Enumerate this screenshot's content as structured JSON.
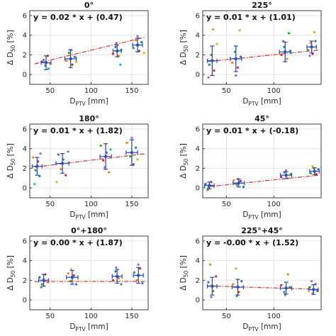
{
  "chart_data": [
    {
      "type": "scatter",
      "title": "0°",
      "equation": "y = 0.02 * x + (0.47)",
      "xlabel": {
        "main": "D",
        "sub": "PTV",
        "unit": " [mm]"
      },
      "ylabel": {
        "main": "Δ D",
        "sub": "50",
        "unit": " [%]"
      },
      "xlim": [
        25,
        170
      ],
      "ylim": [
        -1,
        6.5
      ],
      "xticks": [
        50,
        100,
        150
      ],
      "yticks": [
        0,
        2,
        4,
        6
      ],
      "grid": true,
      "fit": {
        "slope": 0.02,
        "intercept": 0.47
      },
      "means": [
        {
          "x": 45,
          "y": 1.2,
          "xerr": 6,
          "yerr": 0.7
        },
        {
          "x": 75,
          "y": 1.6,
          "xerr": 7,
          "yerr": 0.9
        },
        {
          "x": 132,
          "y": 2.4,
          "xerr": 5,
          "yerr": 0.6
        },
        {
          "x": 157,
          "y": 3.0,
          "xerr": 6,
          "yerr": 0.7
        }
      ],
      "points": [
        {
          "x": 40,
          "y": 1.3,
          "c": "#1f77b4"
        },
        {
          "x": 44,
          "y": 0.9,
          "c": "#2ca02c"
        },
        {
          "x": 47,
          "y": 1.9,
          "c": "#d62728"
        },
        {
          "x": 50,
          "y": 1.1,
          "c": "#ff7f0e"
        },
        {
          "x": 42,
          "y": 1.5,
          "c": "#9467bd"
        },
        {
          "x": 48,
          "y": 0.6,
          "c": "#17becf"
        },
        {
          "x": 70,
          "y": 1.4,
          "c": "#ff7f0e"
        },
        {
          "x": 73,
          "y": 2.2,
          "c": "#2ca02c"
        },
        {
          "x": 77,
          "y": 1.0,
          "c": "#d62728"
        },
        {
          "x": 80,
          "y": 1.8,
          "c": "#1f77b4"
        },
        {
          "x": 75,
          "y": 2.5,
          "c": "#9467bd"
        },
        {
          "x": 82,
          "y": 1.3,
          "c": "#bcbd22"
        },
        {
          "x": 127,
          "y": 2.1,
          "c": "#d62728"
        },
        {
          "x": 130,
          "y": 2.8,
          "c": "#1f77b4"
        },
        {
          "x": 134,
          "y": 1.9,
          "c": "#ff7f0e"
        },
        {
          "x": 137,
          "y": 2.5,
          "c": "#2ca02c"
        },
        {
          "x": 131,
          "y": 3.2,
          "c": "#9467bd"
        },
        {
          "x": 136,
          "y": 1.0,
          "c": "#17becf"
        },
        {
          "x": 152,
          "y": 2.7,
          "c": "#2ca02c"
        },
        {
          "x": 155,
          "y": 3.5,
          "c": "#ff7f0e"
        },
        {
          "x": 159,
          "y": 2.4,
          "c": "#d62728"
        },
        {
          "x": 162,
          "y": 3.3,
          "c": "#1f77b4"
        },
        {
          "x": 157,
          "y": 3.9,
          "c": "#9467bd"
        },
        {
          "x": 165,
          "y": 2.2,
          "c": "#bcbd22"
        }
      ]
    },
    {
      "type": "scatter",
      "title": "225°",
      "equation": "y = 0.01 * x + (1.01)",
      "xlabel": {
        "main": "D",
        "sub": "PTV",
        "unit": " [mm]"
      },
      "ylabel": {
        "main": "Δ D",
        "sub": "50",
        "unit": " [%]"
      },
      "xlim": [
        25,
        150
      ],
      "ylim": [
        -1,
        6.5
      ],
      "xticks": [
        50,
        100
      ],
      "yticks": [
        0,
        2,
        4,
        6
      ],
      "grid": true,
      "fit": {
        "slope": 0.01,
        "intercept": 1.01
      },
      "means": [
        {
          "x": 35,
          "y": 1.4,
          "xerr": 5,
          "yerr": 1.5
        },
        {
          "x": 60,
          "y": 1.6,
          "xerr": 6,
          "yerr": 1.3
        },
        {
          "x": 112,
          "y": 2.3,
          "xerr": 6,
          "yerr": 1.0
        },
        {
          "x": 140,
          "y": 2.8,
          "xerr": 5,
          "yerr": 0.6
        }
      ],
      "points": [
        {
          "x": 32,
          "y": 1.0,
          "c": "#1f77b4"
        },
        {
          "x": 34,
          "y": 2.0,
          "c": "#2ca02c"
        },
        {
          "x": 37,
          "y": 0.4,
          "c": "#d62728"
        },
        {
          "x": 36,
          "y": 4.6,
          "c": "#ff7f0e"
        },
        {
          "x": 40,
          "y": 3.1,
          "c": "#bcbd22"
        },
        {
          "x": 31,
          "y": -0.3,
          "c": "#9467bd"
        },
        {
          "x": 56,
          "y": 1.2,
          "c": "#ff7f0e"
        },
        {
          "x": 59,
          "y": 2.3,
          "c": "#2ca02c"
        },
        {
          "x": 62,
          "y": 0.7,
          "c": "#d62728"
        },
        {
          "x": 64,
          "y": 4.5,
          "c": "#bcbd22"
        },
        {
          "x": 60,
          "y": -0.1,
          "c": "#9467bd"
        },
        {
          "x": 65,
          "y": 1.8,
          "c": "#1f77b4"
        },
        {
          "x": 108,
          "y": 2.0,
          "c": "#d62728"
        },
        {
          "x": 111,
          "y": 2.8,
          "c": "#1f77b4"
        },
        {
          "x": 114,
          "y": 1.6,
          "c": "#ff7f0e"
        },
        {
          "x": 116,
          "y": 4.2,
          "c": "#2ca02c"
        },
        {
          "x": 110,
          "y": 3.4,
          "c": "#9467bd"
        },
        {
          "x": 117,
          "y": 2.4,
          "c": "#17becf"
        },
        {
          "x": 136,
          "y": 2.5,
          "c": "#2ca02c"
        },
        {
          "x": 139,
          "y": 3.2,
          "c": "#ff7f0e"
        },
        {
          "x": 141,
          "y": 2.1,
          "c": "#d62728"
        },
        {
          "x": 143,
          "y": 4.3,
          "c": "#bcbd22"
        },
        {
          "x": 138,
          "y": 1.9,
          "c": "#9467bd"
        },
        {
          "x": 144,
          "y": 3.4,
          "c": "#1f77b4"
        }
      ]
    },
    {
      "type": "scatter",
      "title": "180°",
      "equation": "y = 0.01 * x + (1.82)",
      "xlabel": {
        "main": "D",
        "sub": "PTV",
        "unit": " [mm]"
      },
      "ylabel": {
        "main": "Δ D",
        "sub": "50",
        "unit": " [%]"
      },
      "xlim": [
        25,
        170
      ],
      "ylim": [
        -1,
        6.5
      ],
      "xticks": [
        50,
        100,
        150
      ],
      "yticks": [
        0,
        2,
        4,
        6
      ],
      "grid": true,
      "fit": {
        "slope": 0.01,
        "intercept": 1.82
      },
      "means": [
        {
          "x": 34,
          "y": 2.2,
          "xerr": 6,
          "yerr": 0.9
        },
        {
          "x": 65,
          "y": 2.5,
          "xerr": 8,
          "yerr": 1.0
        },
        {
          "x": 118,
          "y": 3.2,
          "xerr": 7,
          "yerr": 1.3
        },
        {
          "x": 150,
          "y": 3.6,
          "xerr": 7,
          "yerr": 1.3
        }
      ],
      "points": [
        {
          "x": 29,
          "y": 3.1,
          "c": "#ff7f0e"
        },
        {
          "x": 32,
          "y": 1.8,
          "c": "#2ca02c"
        },
        {
          "x": 35,
          "y": 2.7,
          "c": "#d62728"
        },
        {
          "x": 37,
          "y": 1.2,
          "c": "#1f77b4"
        },
        {
          "x": 31,
          "y": 0.4,
          "c": "#17becf"
        },
        {
          "x": 38,
          "y": 3.5,
          "c": "#9467bd"
        },
        {
          "x": 60,
          "y": 3.4,
          "c": "#1f77b4"
        },
        {
          "x": 63,
          "y": 1.9,
          "c": "#ff7f0e"
        },
        {
          "x": 66,
          "y": 2.9,
          "c": "#2ca02c"
        },
        {
          "x": 69,
          "y": 1.3,
          "c": "#d62728"
        },
        {
          "x": 72,
          "y": 3.7,
          "c": "#9467bd"
        },
        {
          "x": 58,
          "y": 0.6,
          "c": "#bcbd22"
        },
        {
          "x": 112,
          "y": 4.3,
          "c": "#2ca02c"
        },
        {
          "x": 115,
          "y": 2.8,
          "c": "#d62728"
        },
        {
          "x": 119,
          "y": 3.6,
          "c": "#1f77b4"
        },
        {
          "x": 122,
          "y": 1.6,
          "c": "#ff7f0e"
        },
        {
          "x": 117,
          "y": 2.1,
          "c": "#9467bd"
        },
        {
          "x": 124,
          "y": 3.9,
          "c": "#17becf"
        },
        {
          "x": 144,
          "y": 4.6,
          "c": "#ff7f0e"
        },
        {
          "x": 148,
          "y": 3.2,
          "c": "#2ca02c"
        },
        {
          "x": 152,
          "y": 2.4,
          "c": "#d62728"
        },
        {
          "x": 155,
          "y": 4.1,
          "c": "#1f77b4"
        },
        {
          "x": 150,
          "y": 5.1,
          "c": "#9467bd"
        },
        {
          "x": 157,
          "y": 2.9,
          "c": "#bcbd22"
        }
      ]
    },
    {
      "type": "scatter",
      "title": "45°",
      "equation": "y = 0.01 * x + (-0.18)",
      "xlabel": {
        "main": "D",
        "sub": "PTV",
        "unit": " [mm]"
      },
      "ylabel": {
        "main": "Δ D",
        "sub": "50",
        "unit": " [%]"
      },
      "xlim": [
        25,
        150
      ],
      "ylim": [
        -1,
        6.5
      ],
      "xticks": [
        50,
        100
      ],
      "yticks": [
        0,
        2,
        4,
        6
      ],
      "grid": true,
      "fit": {
        "slope": 0.01,
        "intercept": -0.18
      },
      "means": [
        {
          "x": 32,
          "y": 0.25,
          "xerr": 5,
          "yerr": 0.35
        },
        {
          "x": 63,
          "y": 0.5,
          "xerr": 6,
          "yerr": 0.4
        },
        {
          "x": 113,
          "y": 1.3,
          "xerr": 6,
          "yerr": 0.35
        },
        {
          "x": 143,
          "y": 1.7,
          "xerr": 5,
          "yerr": 0.35
        }
      ],
      "points": [
        {
          "x": 28,
          "y": 0.4,
          "c": "#1f77b4"
        },
        {
          "x": 31,
          "y": 0.0,
          "c": "#2ca02c"
        },
        {
          "x": 34,
          "y": 0.6,
          "c": "#d62728"
        },
        {
          "x": 36,
          "y": 0.2,
          "c": "#ff7f0e"
        },
        {
          "x": 30,
          "y": -0.2,
          "c": "#9467bd"
        },
        {
          "x": 58,
          "y": 0.8,
          "c": "#ff7f0e"
        },
        {
          "x": 61,
          "y": 0.3,
          "c": "#2ca02c"
        },
        {
          "x": 65,
          "y": 0.7,
          "c": "#d62728"
        },
        {
          "x": 68,
          "y": 0.1,
          "c": "#1f77b4"
        },
        {
          "x": 62,
          "y": 0.9,
          "c": "#9467bd"
        },
        {
          "x": 108,
          "y": 1.1,
          "c": "#d62728"
        },
        {
          "x": 111,
          "y": 1.6,
          "c": "#1f77b4"
        },
        {
          "x": 115,
          "y": 1.0,
          "c": "#ff7f0e"
        },
        {
          "x": 118,
          "y": 1.4,
          "c": "#2ca02c"
        },
        {
          "x": 113,
          "y": 1.8,
          "c": "#9467bd"
        },
        {
          "x": 139,
          "y": 1.5,
          "c": "#2ca02c"
        },
        {
          "x": 142,
          "y": 2.0,
          "c": "#ff7f0e"
        },
        {
          "x": 145,
          "y": 1.4,
          "c": "#d62728"
        },
        {
          "x": 147,
          "y": 1.9,
          "c": "#1f77b4"
        },
        {
          "x": 141,
          "y": 2.2,
          "c": "#bcbd22"
        }
      ]
    },
    {
      "type": "scatter",
      "title": "0°+180°",
      "equation": "y = 0.00 * x + (1.87)",
      "xlabel": {
        "main": "D",
        "sub": "PTV",
        "unit": " [mm]"
      },
      "ylabel": {
        "main": "Δ D",
        "sub": "50",
        "unit": " [%]"
      },
      "xlim": [
        25,
        170
      ],
      "ylim": [
        -1,
        6.5
      ],
      "xticks": [
        50,
        100,
        150
      ],
      "yticks": [
        0,
        2,
        4,
        6
      ],
      "grid": true,
      "fit": {
        "slope": 0.0,
        "intercept": 1.87
      },
      "means": [
        {
          "x": 42,
          "y": 2.0,
          "xerr": 6,
          "yerr": 0.6
        },
        {
          "x": 77,
          "y": 2.3,
          "xerr": 7,
          "yerr": 0.7
        },
        {
          "x": 132,
          "y": 2.4,
          "xerr": 6,
          "yerr": 0.7
        },
        {
          "x": 158,
          "y": 2.5,
          "xerr": 6,
          "yerr": 0.8
        }
      ],
      "points": [
        {
          "x": 37,
          "y": 2.3,
          "c": "#1f77b4"
        },
        {
          "x": 40,
          "y": 1.6,
          "c": "#2ca02c"
        },
        {
          "x": 44,
          "y": 2.6,
          "c": "#d62728"
        },
        {
          "x": 47,
          "y": 1.8,
          "c": "#ff7f0e"
        },
        {
          "x": 39,
          "y": 1.3,
          "c": "#9467bd"
        },
        {
          "x": 72,
          "y": 2.7,
          "c": "#ff7f0e"
        },
        {
          "x": 75,
          "y": 1.9,
          "c": "#2ca02c"
        },
        {
          "x": 79,
          "y": 2.5,
          "c": "#d62728"
        },
        {
          "x": 82,
          "y": 1.6,
          "c": "#1f77b4"
        },
        {
          "x": 76,
          "y": 3.1,
          "c": "#bcbd22"
        },
        {
          "x": 127,
          "y": 2.0,
          "c": "#d62728"
        },
        {
          "x": 130,
          "y": 2.9,
          "c": "#1f77b4"
        },
        {
          "x": 134,
          "y": 2.2,
          "c": "#ff7f0e"
        },
        {
          "x": 137,
          "y": 1.6,
          "c": "#2ca02c"
        },
        {
          "x": 131,
          "y": 3.3,
          "c": "#9467bd"
        },
        {
          "x": 153,
          "y": 2.8,
          "c": "#2ca02c"
        },
        {
          "x": 156,
          "y": 2.0,
          "c": "#ff7f0e"
        },
        {
          "x": 160,
          "y": 3.2,
          "c": "#d62728"
        },
        {
          "x": 163,
          "y": 1.7,
          "c": "#1f77b4"
        },
        {
          "x": 158,
          "y": 3.6,
          "c": "#9467bd"
        }
      ]
    },
    {
      "type": "scatter",
      "title": "225°+45°",
      "equation": "y = -0.00 * x + (1.52)",
      "xlabel": {
        "main": "D",
        "sub": "PTV",
        "unit": " [mm]"
      },
      "ylabel": {
        "main": "Δ D",
        "sub": "50",
        "unit": " [%]"
      },
      "xlim": [
        25,
        150
      ],
      "ylim": [
        -1,
        6.5
      ],
      "xticks": [
        50,
        100
      ],
      "yticks": [
        0,
        2,
        4,
        6
      ],
      "grid": true,
      "fit": {
        "slope": -0.003,
        "intercept": 1.52
      },
      "means": [
        {
          "x": 35,
          "y": 1.4,
          "xerr": 5,
          "yerr": 0.9
        },
        {
          "x": 62,
          "y": 1.3,
          "xerr": 6,
          "yerr": 0.8
        },
        {
          "x": 113,
          "y": 1.2,
          "xerr": 6,
          "yerr": 0.6
        },
        {
          "x": 142,
          "y": 1.05,
          "xerr": 5,
          "yerr": 0.5
        }
      ],
      "points": [
        {
          "x": 31,
          "y": 1.8,
          "c": "#1f77b4"
        },
        {
          "x": 33,
          "y": 3.6,
          "c": "#ff7f0e"
        },
        {
          "x": 36,
          "y": 0.9,
          "c": "#2ca02c"
        },
        {
          "x": 39,
          "y": 2.4,
          "c": "#d62728"
        },
        {
          "x": 34,
          "y": 0.3,
          "c": "#9467bd"
        },
        {
          "x": 57,
          "y": 1.6,
          "c": "#ff7f0e"
        },
        {
          "x": 60,
          "y": 3.2,
          "c": "#bcbd22"
        },
        {
          "x": 63,
          "y": 0.8,
          "c": "#d62728"
        },
        {
          "x": 66,
          "y": 1.9,
          "c": "#1f77b4"
        },
        {
          "x": 61,
          "y": 0.4,
          "c": "#2ca02c"
        },
        {
          "x": 108,
          "y": 1.5,
          "c": "#d62728"
        },
        {
          "x": 111,
          "y": 0.8,
          "c": "#1f77b4"
        },
        {
          "x": 115,
          "y": 2.6,
          "c": "#ff7f0e"
        },
        {
          "x": 117,
          "y": 1.3,
          "c": "#2ca02c"
        },
        {
          "x": 112,
          "y": 0.5,
          "c": "#9467bd"
        },
        {
          "x": 138,
          "y": 1.3,
          "c": "#2ca02c"
        },
        {
          "x": 141,
          "y": 0.7,
          "c": "#ff7f0e"
        },
        {
          "x": 144,
          "y": 1.6,
          "c": "#d62728"
        },
        {
          "x": 146,
          "y": 0.9,
          "c": "#1f77b4"
        },
        {
          "x": 140,
          "y": 1.9,
          "c": "#9467bd"
        }
      ]
    }
  ]
}
